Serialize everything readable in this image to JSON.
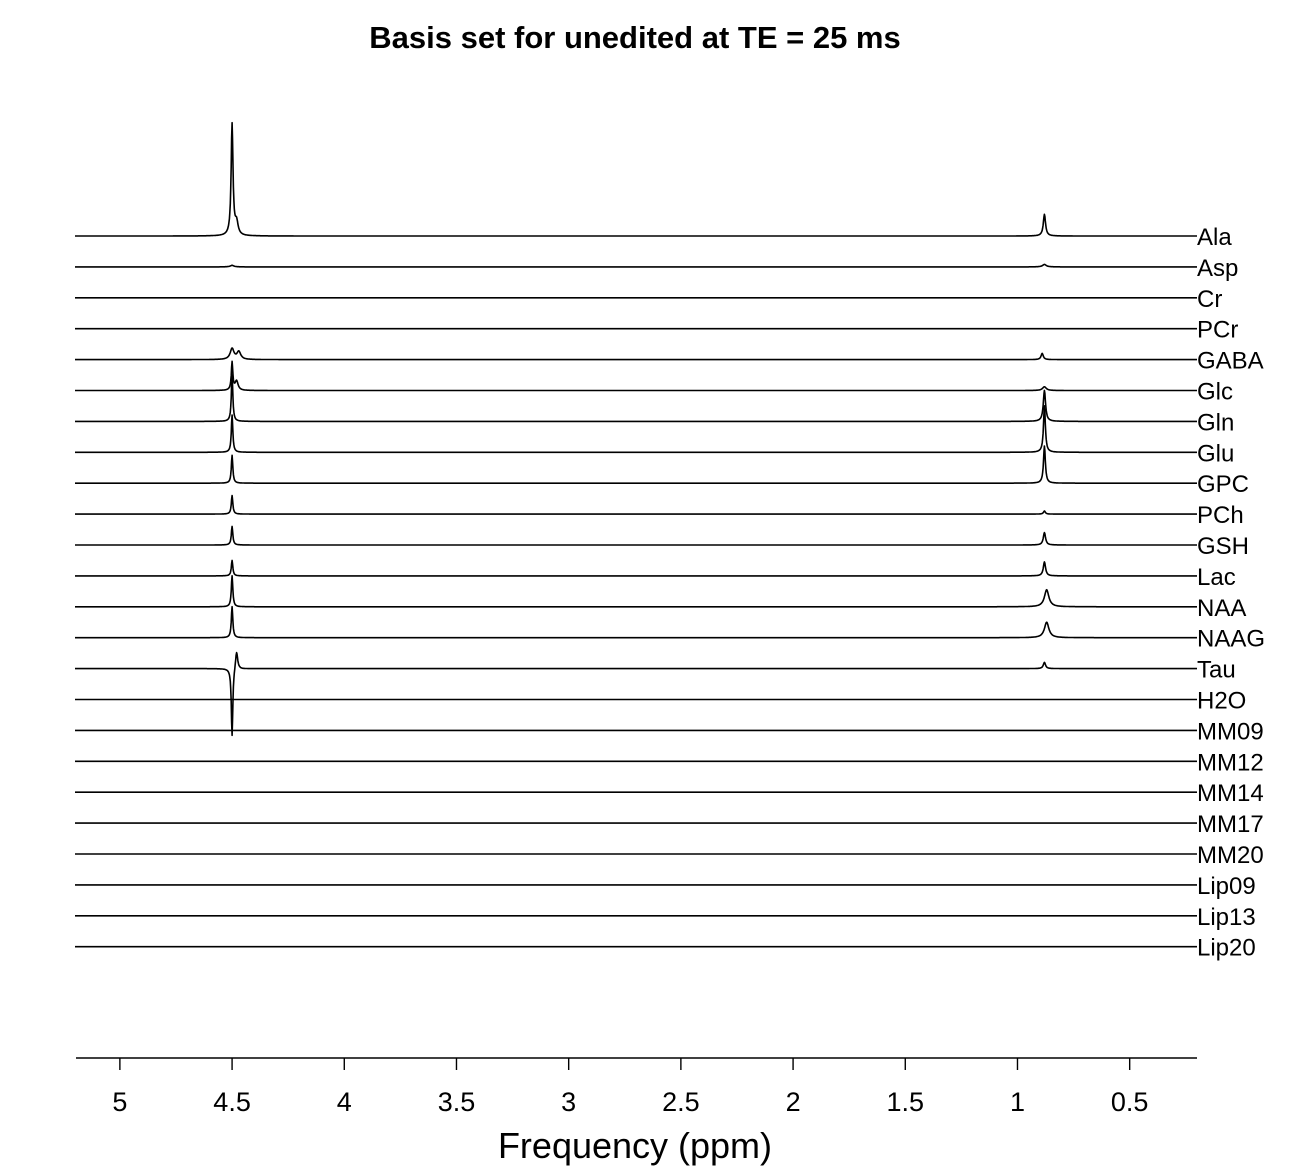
{
  "chart_data": {
    "type": "line",
    "title": "Basis set for unedited at TE = 25 ms",
    "xlabel": "Frequency (ppm)",
    "ylabel": "",
    "x_reversed": true,
    "xlim": [
      5.2,
      0.2
    ],
    "xticks": [
      5,
      4.5,
      4,
      3.5,
      3,
      2.5,
      2,
      1.5,
      1,
      0.5
    ],
    "xtick_labels": [
      "5",
      "4.5",
      "4",
      "3.5",
      "3",
      "2.5",
      "2",
      "1.5",
      "1",
      "0.5"
    ],
    "grid": false,
    "legend": "none",
    "series": [
      {
        "name": "Ala",
        "peaks": [
          {
            "ppm": 4.5,
            "height": 3.6,
            "width": 0.005
          },
          {
            "ppm": 4.48,
            "height": 0.4,
            "width": 0.008
          },
          {
            "ppm": 0.88,
            "height": 0.7,
            "width": 0.006
          }
        ]
      },
      {
        "name": "Asp",
        "peaks": [
          {
            "ppm": 4.5,
            "height": 0.05,
            "width": 0.01
          },
          {
            "ppm": 0.88,
            "height": 0.08,
            "width": 0.01
          }
        ]
      },
      {
        "name": "Cr",
        "peaks": []
      },
      {
        "name": "PCr",
        "peaks": []
      },
      {
        "name": "GABA",
        "peaks": [
          {
            "ppm": 4.5,
            "height": 0.35,
            "width": 0.01
          },
          {
            "ppm": 4.47,
            "height": 0.25,
            "width": 0.01
          },
          {
            "ppm": 0.89,
            "height": 0.2,
            "width": 0.006
          }
        ]
      },
      {
        "name": "Glc",
        "peaks": [
          {
            "ppm": 4.5,
            "height": 0.9,
            "width": 0.004
          },
          {
            "ppm": 4.48,
            "height": 0.3,
            "width": 0.008
          },
          {
            "ppm": 0.88,
            "height": 0.12,
            "width": 0.01
          }
        ]
      },
      {
        "name": "Gln",
        "peaks": [
          {
            "ppm": 4.5,
            "height": 1.5,
            "width": 0.004
          },
          {
            "ppm": 0.88,
            "height": 1.0,
            "width": 0.006
          }
        ]
      },
      {
        "name": "Glu",
        "peaks": [
          {
            "ppm": 4.5,
            "height": 1.2,
            "width": 0.004
          },
          {
            "ppm": 0.88,
            "height": 1.5,
            "width": 0.005
          }
        ]
      },
      {
        "name": "GPC",
        "peaks": [
          {
            "ppm": 4.5,
            "height": 0.9,
            "width": 0.004
          },
          {
            "ppm": 0.88,
            "height": 1.2,
            "width": 0.005
          }
        ]
      },
      {
        "name": "PCh",
        "peaks": [
          {
            "ppm": 4.5,
            "height": 0.6,
            "width": 0.004
          },
          {
            "ppm": 0.88,
            "height": 0.1,
            "width": 0.005
          }
        ]
      },
      {
        "name": "GSH",
        "peaks": [
          {
            "ppm": 4.5,
            "height": 0.6,
            "width": 0.004
          },
          {
            "ppm": 0.88,
            "height": 0.4,
            "width": 0.006
          }
        ]
      },
      {
        "name": "Lac",
        "peaks": [
          {
            "ppm": 4.5,
            "height": 0.5,
            "width": 0.004
          },
          {
            "ppm": 0.88,
            "height": 0.45,
            "width": 0.006
          }
        ]
      },
      {
        "name": "NAA",
        "peaks": [
          {
            "ppm": 4.5,
            "height": 1.0,
            "width": 0.004
          },
          {
            "ppm": 0.87,
            "height": 0.55,
            "width": 0.012
          }
        ]
      },
      {
        "name": "NAAG",
        "peaks": [
          {
            "ppm": 4.5,
            "height": 1.0,
            "width": 0.004
          },
          {
            "ppm": 0.87,
            "height": 0.5,
            "width": 0.012
          }
        ]
      },
      {
        "name": "Tau",
        "peaks": [
          {
            "ppm": 4.5,
            "height": -2.2,
            "width": 0.004
          },
          {
            "ppm": 4.48,
            "height": 0.6,
            "width": 0.006
          },
          {
            "ppm": 0.88,
            "height": 0.2,
            "width": 0.006
          }
        ]
      },
      {
        "name": "H2O",
        "peaks": []
      },
      {
        "name": "MM09",
        "peaks": []
      },
      {
        "name": "MM12",
        "peaks": []
      },
      {
        "name": "MM14",
        "peaks": []
      },
      {
        "name": "MM17",
        "peaks": []
      },
      {
        "name": "MM20",
        "peaks": []
      },
      {
        "name": "Lip09",
        "peaks": []
      },
      {
        "name": "Lip13",
        "peaks": []
      },
      {
        "name": "Lip20",
        "peaks": []
      }
    ]
  }
}
